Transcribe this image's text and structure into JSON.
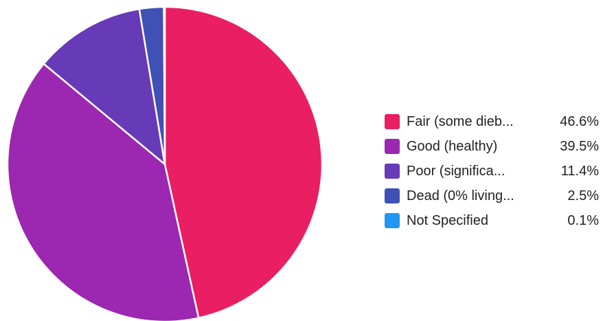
{
  "chart_data": {
    "type": "pie",
    "title": "",
    "legend_position": "right",
    "slices": [
      {
        "label": "Fair (some dieb...",
        "value": 46.6,
        "value_label": "46.6%",
        "color": "#E91E63"
      },
      {
        "label": "Good (healthy)",
        "value": 39.5,
        "value_label": "39.5%",
        "color": "#9C27B0"
      },
      {
        "label": "Poor (significa...",
        "value": 11.4,
        "value_label": "11.4%",
        "color": "#673AB7"
      },
      {
        "label": "Dead (0% living...",
        "value": 2.5,
        "value_label": "2.5%",
        "color": "#3F51B5"
      },
      {
        "label": "Not Specified",
        "value": 0.1,
        "value_label": "0.1%",
        "color": "#2196F3"
      }
    ]
  }
}
